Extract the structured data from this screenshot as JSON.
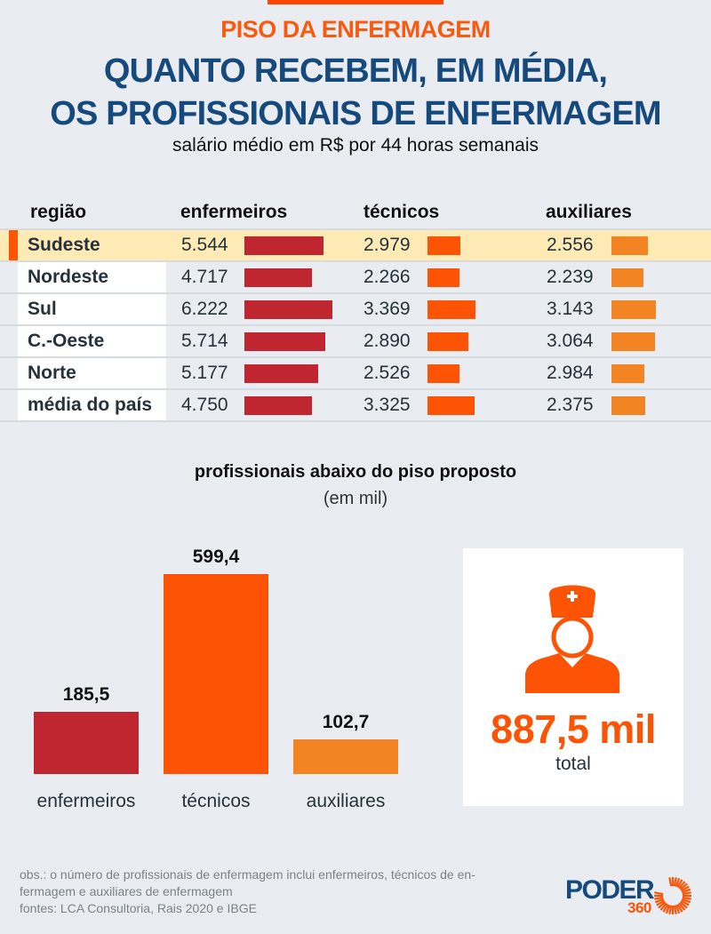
{
  "header": {
    "kicker": "PISO DA ENFERMAGEM",
    "title_line1": "QUANTO RECEBEM, EM MÉDIA,",
    "title_line2": "OS PROFISSIONAIS DE ENFERMAGEM",
    "subtitle": "salário médio em R$ por 44 horas semanais"
  },
  "table": {
    "columns": [
      "região",
      "enfermeiros",
      "técnicos",
      "auxiliares"
    ],
    "rows": [
      {
        "region": "Sudeste",
        "enf": "5.544",
        "tec": "2.979",
        "aux": "2.556",
        "enf_w": 89,
        "tec_w": 37,
        "aux_w": 41,
        "highlight": true
      },
      {
        "region": "Nordeste",
        "enf": "4.717",
        "tec": "2.266",
        "aux": "2.239",
        "enf_w": 76,
        "tec_w": 36,
        "aux_w": 36
      },
      {
        "region": "Sul",
        "enf": "6.222",
        "tec": "3.369",
        "aux": "3.143",
        "enf_w": 99,
        "tec_w": 54,
        "aux_w": 50
      },
      {
        "region": "C.-Oeste",
        "enf": "5.714",
        "tec": "2.890",
        "aux": "3.064",
        "enf_w": 91,
        "tec_w": 46,
        "aux_w": 49
      },
      {
        "region": "Norte",
        "enf": "5.177",
        "tec": "2.526",
        "aux": "2.984",
        "enf_w": 83,
        "tec_w": 36,
        "aux_w": 37
      },
      {
        "region": "média do país",
        "enf": "4.750",
        "tec": "3.325",
        "aux": "2.375",
        "enf_w": 76,
        "tec_w": 53,
        "aux_w": 38
      }
    ]
  },
  "below_floor": {
    "title": "profissionais abaixo do piso proposto",
    "unit": "(em mil)",
    "bars": [
      {
        "label": "enfermeiros",
        "value": "185,5"
      },
      {
        "label": "técnicos",
        "value": "599,4"
      },
      {
        "label": "auxiliares",
        "value": "102,7"
      }
    ],
    "total_value": "887,5 mil",
    "total_label": "total",
    "icon": "nurse-icon"
  },
  "footer": {
    "note_line1": "obs.: o número de profissionais de enfermagem inclui enfermeiros, técnicos de en-",
    "note_line2": "fermagem e auxiliares de enfermagem",
    "sources": "fontes: LCA Consultoria, Rais 2020 e IBGE",
    "logo_word": "PODER",
    "logo_number": "360"
  },
  "colors": {
    "enfermeiros": "#bf2630",
    "tecnicos": "#fc5305",
    "auxiliares": "#f38424",
    "title_blue": "#174a7c",
    "highlight_row": "#feeab4"
  },
  "chart_data": [
    {
      "type": "table",
      "title": "Quanto recebem, em média, os profissionais de enfermagem",
      "subtitle": "salário médio em R$ por 44 horas semanais",
      "categories": [
        "Sudeste",
        "Nordeste",
        "Sul",
        "C.-Oeste",
        "Norte",
        "média do país"
      ],
      "series": [
        {
          "name": "enfermeiros",
          "values": [
            5544,
            4717,
            6222,
            5714,
            5177,
            4750
          ]
        },
        {
          "name": "técnicos",
          "values": [
            2979,
            2266,
            3369,
            2890,
            2526,
            3325
          ]
        },
        {
          "name": "auxiliares",
          "values": [
            2556,
            2239,
            3143,
            3064,
            2984,
            2375
          ]
        }
      ]
    },
    {
      "type": "bar",
      "title": "profissionais abaixo do piso proposto",
      "subtitle": "(em mil)",
      "categories": [
        "enfermeiros",
        "técnicos",
        "auxiliares"
      ],
      "values": [
        185.5,
        599.4,
        102.7
      ],
      "total": 887.5,
      "xlabel": "",
      "ylabel": "",
      "grid": false
    }
  ]
}
